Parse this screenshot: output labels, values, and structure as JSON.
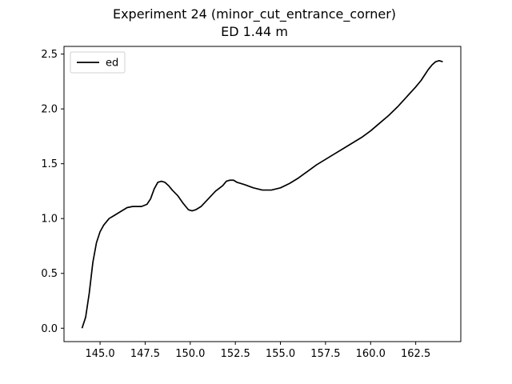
{
  "chart_data": {
    "type": "line",
    "title": "Experiment 24 (minor_cut_entrance_corner)",
    "subtitle": "ED 1.44 m",
    "xlabel": "",
    "ylabel": "",
    "xlim": [
      143.0,
      165.0
    ],
    "ylim": [
      -0.122,
      2.57
    ],
    "xticks": [
      145.0,
      147.5,
      150.0,
      152.5,
      155.0,
      157.5,
      160.0,
      162.5
    ],
    "xtick_labels": [
      "145.0",
      "147.5",
      "150.0",
      "152.5",
      "155.0",
      "157.5",
      "160.0",
      "162.5"
    ],
    "yticks": [
      0.0,
      0.5,
      1.0,
      1.5,
      2.0,
      2.5
    ],
    "ytick_labels": [
      "0.0",
      "0.5",
      "1.0",
      "1.5",
      "2.0",
      "2.5"
    ],
    "grid": false,
    "legend": "top-left",
    "series": [
      {
        "name": "ed",
        "color": "#000000",
        "x": [
          144.0,
          144.2,
          144.4,
          144.6,
          144.8,
          145.0,
          145.2,
          145.5,
          145.8,
          146.1,
          146.5,
          146.8,
          147.0,
          147.3,
          147.6,
          147.8,
          148.0,
          148.2,
          148.4,
          148.6,
          148.8,
          149.0,
          149.3,
          149.6,
          149.9,
          150.1,
          150.3,
          150.6,
          151.0,
          151.4,
          151.8,
          152.0,
          152.2,
          152.4,
          152.6,
          153.0,
          153.5,
          154.0,
          154.5,
          155.0,
          155.5,
          156.0,
          156.5,
          157.0,
          157.5,
          158.0,
          158.5,
          159.0,
          159.5,
          160.0,
          160.5,
          161.0,
          161.5,
          162.0,
          162.5,
          162.8,
          163.0,
          163.2,
          163.4,
          163.6,
          163.8,
          164.0
        ],
        "y": [
          0.0,
          0.1,
          0.32,
          0.6,
          0.78,
          0.88,
          0.94,
          1.0,
          1.03,
          1.06,
          1.1,
          1.11,
          1.11,
          1.11,
          1.13,
          1.18,
          1.27,
          1.33,
          1.34,
          1.33,
          1.3,
          1.26,
          1.21,
          1.14,
          1.08,
          1.07,
          1.08,
          1.11,
          1.18,
          1.25,
          1.3,
          1.34,
          1.35,
          1.35,
          1.33,
          1.31,
          1.28,
          1.26,
          1.26,
          1.28,
          1.32,
          1.37,
          1.43,
          1.49,
          1.54,
          1.59,
          1.64,
          1.69,
          1.74,
          1.8,
          1.87,
          1.94,
          2.02,
          2.11,
          2.2,
          2.26,
          2.31,
          2.36,
          2.4,
          2.43,
          2.44,
          2.43
        ]
      }
    ]
  }
}
